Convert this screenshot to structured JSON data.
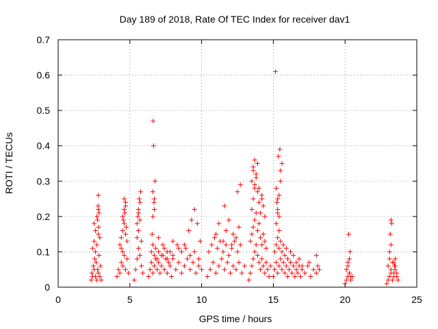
{
  "chart_data": {
    "type": "scatter",
    "title": "Day 189 of 2018, Rate Of TEC Index for receiver dav1",
    "xlabel": "GPS time / hours",
    "ylabel": "ROTI / TECUs",
    "xlim": [
      0,
      25
    ],
    "ylim": [
      0,
      0.7
    ],
    "xticks": [
      "0",
      "5",
      "10",
      "15",
      "20",
      "25"
    ],
    "yticks": [
      "0",
      "0.1",
      "0.2",
      "0.3",
      "0.4",
      "0.5",
      "0.6",
      "0.7"
    ],
    "xtick_values": [
      0,
      5,
      10,
      15,
      20,
      25
    ],
    "ytick_values": [
      0,
      0.1,
      0.2,
      0.3,
      0.4,
      0.5,
      0.6,
      0.7
    ],
    "grid": true,
    "marker": "+",
    "color": "#ff0000",
    "series": [
      {
        "name": "ROTI",
        "x": [
          2.3,
          2.35,
          2.4,
          2.45,
          2.5,
          2.55,
          2.6,
          2.65,
          2.7,
          2.75,
          2.8,
          2.85,
          2.9,
          2.95,
          3.0,
          2.4,
          2.5,
          2.6,
          2.7,
          2.8,
          2.9,
          2.5,
          2.6,
          2.7,
          2.8,
          2.75,
          2.8,
          2.85,
          2.82,
          2.78,
          4.1,
          4.2,
          4.3,
          4.4,
          4.5,
          4.6,
          4.7,
          4.8,
          4.9,
          4.3,
          4.4,
          4.5,
          4.6,
          4.7,
          4.8,
          4.5,
          4.6,
          4.7,
          4.55,
          4.65,
          4.7,
          4.75,
          4.6,
          4.5,
          4.4,
          5.3,
          5.4,
          5.5,
          5.6,
          5.7,
          5.8,
          5.9,
          5.5,
          5.6,
          5.7,
          5.8,
          5.6,
          5.7,
          5.5,
          5.6,
          5.75,
          5.65,
          5.55,
          6.3,
          6.4,
          6.5,
          6.6,
          6.7,
          6.8,
          6.9,
          7.0,
          7.1,
          7.2,
          7.3,
          7.4,
          7.5,
          7.6,
          7.7,
          7.8,
          7.9,
          8.0,
          8.2,
          8.4,
          8.6,
          8.8,
          9.0,
          9.2,
          9.4,
          9.6,
          9.8,
          10.0,
          6.5,
          6.6,
          6.7,
          6.8,
          6.9,
          7.0,
          7.2,
          7.4,
          7.6,
          7.8,
          8.0,
          8.3,
          8.6,
          8.9,
          9.2,
          9.5,
          9.8,
          6.55,
          6.6,
          6.7,
          6.75,
          6.6,
          6.7,
          6.65,
          6.62,
          6.68,
          7.0,
          7.3,
          7.6,
          8.0,
          8.4,
          8.8,
          9.1,
          9.3,
          9.5,
          9.7,
          9.9,
          10.4,
          10.6,
          10.8,
          11.0,
          11.2,
          11.4,
          11.6,
          11.8,
          12.0,
          12.2,
          12.4,
          12.6,
          12.8,
          13.0,
          10.5,
          10.7,
          10.9,
          11.1,
          11.3,
          11.5,
          11.7,
          11.9,
          12.1,
          12.3,
          12.5,
          12.7,
          11.0,
          11.2,
          11.5,
          11.7,
          11.9,
          12.1,
          12.4,
          12.6,
          12.7,
          12.5,
          12.2,
          11.6,
          13.3,
          13.4,
          13.5,
          13.6,
          13.7,
          13.8,
          13.9,
          14.0,
          14.1,
          14.2,
          14.3,
          14.4,
          14.5,
          14.6,
          14.7,
          14.8,
          13.4,
          13.5,
          13.6,
          13.7,
          13.8,
          13.9,
          14.0,
          14.1,
          14.2,
          14.3,
          14.4,
          14.5,
          13.5,
          13.6,
          13.7,
          13.8,
          13.9,
          14.0,
          14.1,
          14.2,
          14.3,
          14.4,
          13.6,
          13.7,
          13.8,
          13.9,
          13.5,
          13.6,
          13.7,
          14.0,
          14.2,
          15.0,
          15.1,
          15.2,
          15.3,
          15.4,
          15.5,
          15.6,
          15.7,
          15.8,
          15.9,
          16.0,
          16.1,
          16.2,
          16.3,
          16.4,
          16.5,
          16.6,
          16.7,
          16.8,
          16.9,
          17.0,
          17.2,
          17.4,
          17.6,
          17.8,
          18.0,
          18.1,
          18.2,
          15.1,
          15.2,
          15.3,
          15.4,
          15.5,
          15.6,
          15.7,
          15.8,
          15.9,
          16.0,
          16.2,
          16.4,
          16.6,
          16.8,
          17.0,
          17.5,
          18.0,
          15.2,
          15.3,
          15.4,
          15.5,
          15.6,
          15.3,
          15.4,
          15.5,
          15.25,
          15.35,
          15.45,
          15.2,
          15.3,
          15.4,
          15.15,
          20.0,
          20.1,
          20.2,
          20.3,
          20.4,
          20.5,
          20.1,
          20.2,
          20.3,
          20.4,
          20.2,
          20.3,
          20.35,
          20.25,
          22.9,
          23.0,
          23.1,
          23.2,
          23.3,
          23.4,
          23.5,
          23.6,
          23.7,
          23.0,
          23.1,
          23.2,
          23.3,
          23.4,
          23.5,
          23.6,
          23.1,
          23.2,
          23.15,
          23.25,
          23.2,
          23.5,
          23.4,
          23.45
        ],
        "y": [
          0.02,
          0.04,
          0.03,
          0.06,
          0.05,
          0.08,
          0.03,
          0.07,
          0.02,
          0.05,
          0.04,
          0.09,
          0.03,
          0.06,
          0.02,
          0.11,
          0.13,
          0.1,
          0.12,
          0.15,
          0.14,
          0.18,
          0.16,
          0.2,
          0.22,
          0.19,
          0.26,
          0.21,
          0.17,
          0.23,
          0.03,
          0.05,
          0.04,
          0.07,
          0.06,
          0.09,
          0.05,
          0.08,
          0.04,
          0.12,
          0.14,
          0.16,
          0.18,
          0.15,
          0.13,
          0.2,
          0.22,
          0.24,
          0.19,
          0.21,
          0.23,
          0.17,
          0.25,
          0.1,
          0.11,
          0.02,
          0.05,
          0.08,
          0.11,
          0.09,
          0.06,
          0.04,
          0.14,
          0.16,
          0.19,
          0.13,
          0.21,
          0.24,
          0.18,
          0.22,
          0.27,
          0.25,
          0.2,
          0.03,
          0.05,
          0.07,
          0.04,
          0.06,
          0.08,
          0.05,
          0.07,
          0.04,
          0.06,
          0.09,
          0.05,
          0.08,
          0.04,
          0.07,
          0.06,
          0.03,
          0.08,
          0.05,
          0.07,
          0.04,
          0.06,
          0.08,
          0.05,
          0.07,
          0.04,
          0.06,
          0.05,
          0.1,
          0.12,
          0.09,
          0.11,
          0.08,
          0.1,
          0.09,
          0.11,
          0.08,
          0.1,
          0.09,
          0.12,
          0.1,
          0.11,
          0.09,
          0.1,
          0.08,
          0.15,
          0.2,
          0.25,
          0.3,
          0.27,
          0.22,
          0.4,
          0.47,
          0.24,
          0.14,
          0.12,
          0.1,
          0.13,
          0.11,
          0.12,
          0.16,
          0.19,
          0.22,
          0.18,
          0.13,
          0.03,
          0.05,
          0.07,
          0.04,
          0.06,
          0.08,
          0.05,
          0.07,
          0.04,
          0.06,
          0.05,
          0.07,
          0.04,
          0.06,
          0.1,
          0.12,
          0.14,
          0.11,
          0.13,
          0.1,
          0.12,
          0.09,
          0.11,
          0.13,
          0.1,
          0.12,
          0.15,
          0.18,
          0.13,
          0.16,
          0.19,
          0.12,
          0.14,
          0.17,
          0.29,
          0.27,
          0.15,
          0.23,
          0.02,
          0.04,
          0.06,
          0.08,
          0.1,
          0.12,
          0.09,
          0.07,
          0.05,
          0.08,
          0.06,
          0.04,
          0.07,
          0.05,
          0.03,
          0.06,
          0.13,
          0.15,
          0.17,
          0.19,
          0.21,
          0.16,
          0.18,
          0.14,
          0.12,
          0.15,
          0.13,
          0.11,
          0.22,
          0.25,
          0.28,
          0.31,
          0.27,
          0.24,
          0.21,
          0.26,
          0.23,
          0.2,
          0.33,
          0.36,
          0.32,
          0.35,
          0.3,
          0.34,
          0.29,
          0.28,
          0.25,
          0.03,
          0.05,
          0.07,
          0.04,
          0.06,
          0.08,
          0.05,
          0.07,
          0.04,
          0.06,
          0.03,
          0.05,
          0.07,
          0.04,
          0.06,
          0.03,
          0.05,
          0.04,
          0.06,
          0.03,
          0.05,
          0.04,
          0.06,
          0.03,
          0.05,
          0.04,
          0.06,
          0.05,
          0.1,
          0.12,
          0.14,
          0.11,
          0.13,
          0.1,
          0.12,
          0.09,
          0.11,
          0.08,
          0.1,
          0.09,
          0.07,
          0.08,
          0.06,
          0.07,
          0.09,
          0.18,
          0.22,
          0.26,
          0.3,
          0.35,
          0.25,
          0.2,
          0.33,
          0.24,
          0.37,
          0.39,
          0.28,
          0.21,
          0.16,
          0.61,
          0.01,
          0.02,
          0.03,
          0.04,
          0.02,
          0.03,
          0.05,
          0.06,
          0.04,
          0.03,
          0.07,
          0.08,
          0.1,
          0.15,
          0.01,
          0.02,
          0.03,
          0.04,
          0.02,
          0.03,
          0.05,
          0.04,
          0.02,
          0.06,
          0.08,
          0.05,
          0.07,
          0.04,
          0.06,
          0.03,
          0.1,
          0.12,
          0.15,
          0.18,
          0.19,
          0.08,
          0.07,
          0.06
        ]
      }
    ]
  }
}
